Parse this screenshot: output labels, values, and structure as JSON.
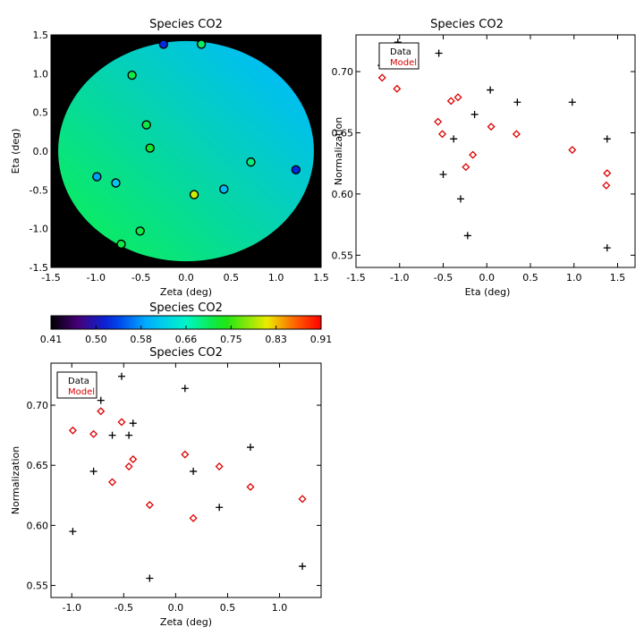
{
  "chart_data": [
    {
      "id": "map",
      "type": "scatter",
      "title": "Species CO2",
      "xlabel": "Zeta (deg)",
      "ylabel": "Eta (deg)",
      "xlim": [
        -1.5,
        1.5
      ],
      "ylim": [
        -1.5,
        1.5
      ],
      "xticks": [
        -1.5,
        -1.0,
        -0.5,
        0.0,
        0.5,
        1.0,
        1.5
      ],
      "yticks": [
        -1.5,
        -1.0,
        -0.5,
        0.0,
        0.5,
        1.0,
        1.5
      ],
      "background": "#000000",
      "field": {
        "shape": "circle",
        "center": [
          0,
          0
        ],
        "radius": 1.42,
        "gradient_from_value": 0.7,
        "gradient_to_value": 0.6,
        "gradient_from": [
          -1.0,
          -1.25
        ],
        "gradient_to": [
          0.95,
          1.25
        ]
      },
      "points": [
        {
          "x": -0.25,
          "y": 1.38,
          "value": 0.52
        },
        {
          "x": 0.17,
          "y": 1.38,
          "value": 0.7
        },
        {
          "x": -0.6,
          "y": 0.98,
          "value": 0.71
        },
        {
          "x": -0.44,
          "y": 0.34,
          "value": 0.71
        },
        {
          "x": -0.4,
          "y": 0.04,
          "value": 0.72
        },
        {
          "x": 0.72,
          "y": -0.14,
          "value": 0.69
        },
        {
          "x": 1.22,
          "y": -0.24,
          "value": 0.52
        },
        {
          "x": -0.99,
          "y": -0.33,
          "value": 0.58
        },
        {
          "x": -0.78,
          "y": -0.41,
          "value": 0.61
        },
        {
          "x": 0.42,
          "y": -0.49,
          "value": 0.6
        },
        {
          "x": 0.09,
          "y": -0.56,
          "value": 0.8
        },
        {
          "x": -0.51,
          "y": -1.03,
          "value": 0.71
        },
        {
          "x": -0.72,
          "y": -1.2,
          "value": 0.71
        }
      ]
    },
    {
      "id": "colorbar",
      "type": "heatmap",
      "title": "Species CO2",
      "colormap": "rainbow",
      "range": [
        0.41,
        0.91
      ],
      "tick_labels": [
        "0.41",
        "0.50",
        "0.58",
        "0.66",
        "0.75",
        "0.83",
        "0.91"
      ]
    },
    {
      "id": "eta_plot",
      "type": "scatter",
      "title": "Species CO2",
      "xlabel": "Eta (deg)",
      "ylabel": "Normalization",
      "xlim": [
        -1.5,
        1.7
      ],
      "ylim": [
        0.54,
        0.73
      ],
      "xticks": [
        -1.5,
        -1.0,
        -0.5,
        0.0,
        0.5,
        1.0,
        1.5
      ],
      "xtick_labels": [
        "-1.5",
        "-1.0",
        "-0.5",
        "0.0",
        "0.5",
        "1.0",
        "1.5"
      ],
      "yticks": [
        0.55,
        0.6,
        0.65,
        0.7
      ],
      "ytick_labels": [
        "0.55",
        "0.60",
        "0.65",
        "0.70"
      ],
      "legend": {
        "position": "top-left",
        "entries": [
          "Data",
          "Model"
        ]
      },
      "series": [
        {
          "name": "Data",
          "marker": "plus",
          "color": "#000000",
          "x": [
            -1.21,
            -1.02,
            -0.55,
            -0.5,
            -0.38,
            -0.3,
            -0.22,
            -0.14,
            0.04,
            0.35,
            0.98,
            1.38,
            1.38
          ],
          "y": [
            0.705,
            0.724,
            0.715,
            0.616,
            0.645,
            0.596,
            0.566,
            0.665,
            0.685,
            0.675,
            0.675,
            0.645,
            0.556
          ]
        },
        {
          "name": "Model",
          "marker": "diamond",
          "color": "#dd0000",
          "x": [
            -1.2,
            -1.03,
            -0.56,
            -0.51,
            -0.41,
            -0.33,
            -0.24,
            -0.16,
            0.05,
            0.34,
            0.98,
            1.37,
            1.38
          ],
          "y": [
            0.695,
            0.686,
            0.659,
            0.649,
            0.676,
            0.679,
            0.622,
            0.632,
            0.655,
            0.649,
            0.636,
            0.607,
            0.617
          ]
        }
      ]
    },
    {
      "id": "zeta_plot",
      "type": "scatter",
      "title": "Species CO2",
      "xlabel": "Zeta (deg)",
      "ylabel": "Normalization",
      "xlim": [
        -1.2,
        1.4
      ],
      "ylim": [
        0.54,
        0.735
      ],
      "xticks": [
        -1.0,
        -0.5,
        0.0,
        0.5,
        1.0
      ],
      "xtick_labels": [
        "-1.0",
        "-0.5",
        "0.0",
        "0.5",
        "1.0"
      ],
      "yticks": [
        0.55,
        0.6,
        0.65,
        0.7
      ],
      "ytick_labels": [
        "0.55",
        "0.60",
        "0.65",
        "0.70"
      ],
      "legend": {
        "position": "top-left",
        "entries": [
          "Data",
          "Model"
        ]
      },
      "series": [
        {
          "name": "Data",
          "marker": "plus",
          "color": "#000000",
          "x": [
            -0.99,
            -0.79,
            -0.72,
            -0.61,
            -0.52,
            -0.45,
            -0.41,
            -0.25,
            0.09,
            0.17,
            0.42,
            0.72,
            1.22
          ],
          "y": [
            0.595,
            0.645,
            0.704,
            0.675,
            0.724,
            0.675,
            0.685,
            0.556,
            0.714,
            0.645,
            0.615,
            0.665,
            0.566
          ]
        },
        {
          "name": "Model",
          "marker": "diamond",
          "color": "#dd0000",
          "x": [
            -0.99,
            -0.79,
            -0.72,
            -0.61,
            -0.52,
            -0.45,
            -0.41,
            -0.25,
            0.09,
            0.17,
            0.42,
            0.72,
            1.22
          ],
          "y": [
            0.679,
            0.676,
            0.695,
            0.636,
            0.686,
            0.649,
            0.655,
            0.617,
            0.659,
            0.606,
            0.649,
            0.632,
            0.622
          ]
        }
      ]
    }
  ]
}
